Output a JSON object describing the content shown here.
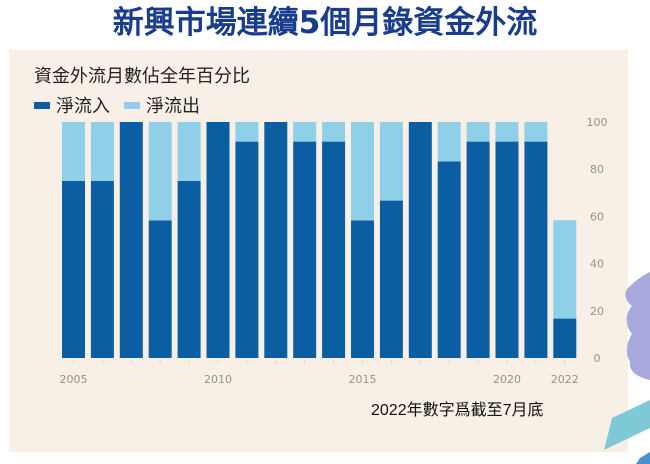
{
  "header": {
    "title": "新興市場連續5個月錄資金外流"
  },
  "chart_data": {
    "type": "bar",
    "stacked": true,
    "title": "資金外流月數佔全年百分比",
    "xlabel": "",
    "ylabel": "",
    "ylim": [
      0,
      100
    ],
    "yticks": [
      "0",
      "20",
      "40",
      "60",
      "80",
      "100"
    ],
    "ytick_values": [
      0,
      20,
      40,
      60,
      80,
      100
    ],
    "xtick_labels": [
      {
        "year": 2005,
        "label": "2005"
      },
      {
        "year": 2010,
        "label": "2010"
      },
      {
        "year": 2015,
        "label": "2015"
      },
      {
        "year": 2020,
        "label": "2020"
      },
      {
        "year": 2022,
        "label": "2022"
      }
    ],
    "categories": [
      2005,
      2006,
      2007,
      2008,
      2009,
      2010,
      2011,
      2012,
      2013,
      2014,
      2015,
      2016,
      2017,
      2018,
      2019,
      2020,
      2021,
      2022
    ],
    "series": [
      {
        "name": "淨流入",
        "color": "#0b5ea1",
        "values": [
          75,
          75,
          100,
          58.3,
          75,
          100,
          91.7,
          100,
          91.7,
          91.7,
          58.3,
          66.7,
          100,
          83.3,
          91.7,
          91.7,
          91.7,
          16.7
        ]
      },
      {
        "name": "淨流出",
        "color": "#8fcfe8",
        "values": [
          25,
          25,
          0,
          41.7,
          25,
          0,
          8.3,
          0,
          8.3,
          8.3,
          41.7,
          33.3,
          0,
          16.7,
          8.3,
          8.3,
          8.3,
          41.7
        ]
      }
    ],
    "legend_position": "top-left",
    "grid": false,
    "note": "2022年數字爲截至7月底"
  }
}
